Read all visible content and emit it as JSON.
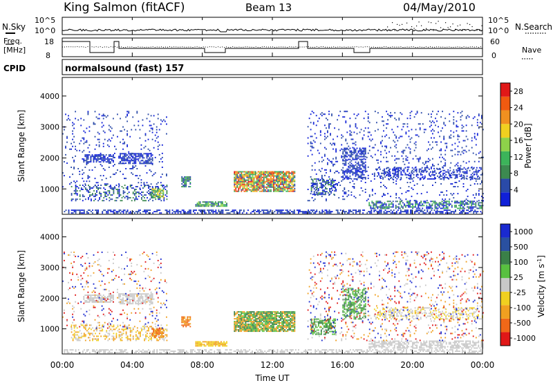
{
  "header": {
    "station": "King Salmon (fitACF)",
    "beam": "Beam 13",
    "date": "04/May/2010"
  },
  "top_panels": {
    "nsky_label": "N.Sky",
    "nsky_ticks": [
      "10^5",
      "10^0"
    ],
    "nsearch_label": "N.Search",
    "nsearch_ticks": [
      "10^5",
      "10^0"
    ],
    "freq_label_1": "Freq.",
    "freq_label_2": "[MHz]",
    "freq_ticks": [
      "18",
      "8"
    ],
    "nave_label": "Nave",
    "nave_ticks": [
      "60",
      "0"
    ],
    "cpid_label": "CPID",
    "cpid_value": "normalsound (fast) 157"
  },
  "x_axis": {
    "ticks": [
      "00:00",
      "04:00",
      "08:00",
      "12:00",
      "16:00",
      "20:00",
      "00:00"
    ],
    "label": "Time UT"
  },
  "colors": {
    "power": [
      "#1020d8",
      "#2a4aa8",
      "#3c8a50",
      "#3cb45a",
      "#8ed24a",
      "#f0d020",
      "#f09020",
      "#f05a10",
      "#e01818"
    ],
    "velocity": [
      "#1a2ad0",
      "#2a50a0",
      "#3a8048",
      "#58c040",
      "#c8c8c8",
      "#f0d020",
      "#f0a020",
      "#f06818",
      "#e01818"
    ]
  },
  "chart_data": [
    {
      "type": "heatmap",
      "panel": "power",
      "ylabel": "Slant Range [km]",
      "y_ticks": [
        1000,
        2000,
        3000,
        4000
      ],
      "ylim": [
        180,
        4600
      ],
      "xlim": [
        0,
        24
      ],
      "colorbar_label": "Power [dB]",
      "colorbar_ticks": [
        4,
        8,
        12,
        16,
        20,
        24,
        28
      ],
      "colorbar_range": [
        0,
        30
      ],
      "regions": [
        {
          "t": [
            0.1,
            24.0
          ],
          "r": [
            200,
            330
          ],
          "density": 0.55,
          "levels": [
            0,
            1
          ]
        },
        {
          "t": [
            1.2,
            2.9
          ],
          "r": [
            1850,
            2100
          ],
          "density": 0.7,
          "levels": [
            0,
            1
          ]
        },
        {
          "t": [
            3.2,
            5.2
          ],
          "r": [
            1800,
            2150
          ],
          "density": 0.7,
          "levels": [
            0,
            1
          ]
        },
        {
          "t": [
            0.5,
            6.0
          ],
          "r": [
            600,
            1100
          ],
          "density": 0.35,
          "levels": [
            0,
            1,
            2
          ]
        },
        {
          "t": [
            5.1,
            5.8
          ],
          "r": [
            700,
            1000
          ],
          "density": 0.8,
          "levels": [
            2,
            3,
            4,
            5
          ]
        },
        {
          "t": [
            6.8,
            7.3
          ],
          "r": [
            1050,
            1400
          ],
          "density": 0.7,
          "levels": [
            1,
            2,
            3
          ]
        },
        {
          "t": [
            7.6,
            9.4
          ],
          "r": [
            420,
            580
          ],
          "density": 0.85,
          "levels": [
            1,
            2,
            3,
            4
          ]
        },
        {
          "t": [
            9.8,
            13.3
          ],
          "r": [
            900,
            1550
          ],
          "density": 0.85,
          "levels": [
            1,
            2,
            3,
            4,
            5,
            6,
            7,
            8
          ]
        },
        {
          "t": [
            14.2,
            15.6
          ],
          "r": [
            800,
            1300
          ],
          "density": 0.55,
          "levels": [
            0,
            1,
            2
          ]
        },
        {
          "t": [
            16.0,
            17.3
          ],
          "r": [
            1300,
            2300
          ],
          "density": 0.5,
          "levels": [
            0,
            1
          ]
        },
        {
          "t": [
            17.5,
            24.0
          ],
          "r": [
            350,
            600
          ],
          "density": 0.6,
          "levels": [
            0,
            1,
            2,
            3
          ]
        },
        {
          "t": [
            17.8,
            24.0
          ],
          "r": [
            1300,
            1700
          ],
          "density": 0.35,
          "levels": [
            0,
            1
          ]
        },
        {
          "t": [
            0.0,
            6.0
          ],
          "r": [
            1000,
            3500
          ],
          "density": 0.08,
          "levels": [
            0,
            1
          ]
        },
        {
          "t": [
            14.0,
            24.0
          ],
          "r": [
            600,
            3500
          ],
          "density": 0.1,
          "levels": [
            0,
            1
          ]
        }
      ]
    },
    {
      "type": "heatmap",
      "panel": "velocity",
      "ylabel": "Slant Range [km]",
      "y_ticks": [
        1000,
        2000,
        3000,
        4000
      ],
      "ylim": [
        180,
        4600
      ],
      "xlim": [
        0,
        24
      ],
      "colorbar_label": "Velocity [m s^-1]",
      "colorbar_ticks": [
        1000,
        500,
        100,
        25,
        -25,
        -100,
        -500,
        -1000
      ],
      "regions": [
        {
          "t": [
            0.1,
            24.0
          ],
          "r": [
            200,
            330
          ],
          "density": 0.5,
          "levels": [
            4
          ]
        },
        {
          "t": [
            1.2,
            2.9
          ],
          "r": [
            1850,
            2100
          ],
          "density": 0.7,
          "levels": [
            4
          ]
        },
        {
          "t": [
            3.2,
            5.2
          ],
          "r": [
            1800,
            2150
          ],
          "density": 0.7,
          "levels": [
            4
          ]
        },
        {
          "t": [
            0.5,
            6.0
          ],
          "r": [
            600,
            1100
          ],
          "density": 0.35,
          "levels": [
            4,
            5,
            6
          ]
        },
        {
          "t": [
            5.1,
            5.8
          ],
          "r": [
            700,
            1000
          ],
          "density": 0.8,
          "levels": [
            6,
            7
          ]
        },
        {
          "t": [
            6.8,
            7.3
          ],
          "r": [
            1050,
            1400
          ],
          "density": 0.7,
          "levels": [
            6,
            7
          ]
        },
        {
          "t": [
            7.6,
            9.4
          ],
          "r": [
            420,
            580
          ],
          "density": 0.85,
          "levels": [
            5,
            6
          ]
        },
        {
          "t": [
            9.8,
            13.3
          ],
          "r": [
            900,
            1550
          ],
          "density": 0.85,
          "levels": [
            2,
            3,
            6
          ]
        },
        {
          "t": [
            14.2,
            15.6
          ],
          "r": [
            800,
            1300
          ],
          "density": 0.55,
          "levels": [
            2,
            3
          ]
        },
        {
          "t": [
            16.0,
            17.3
          ],
          "r": [
            1300,
            2300
          ],
          "density": 0.5,
          "levels": [
            2,
            3
          ]
        },
        {
          "t": [
            17.5,
            24.0
          ],
          "r": [
            350,
            600
          ],
          "density": 0.6,
          "levels": [
            4
          ]
        },
        {
          "t": [
            17.8,
            24.0
          ],
          "r": [
            1300,
            1700
          ],
          "density": 0.35,
          "levels": [
            4,
            5
          ]
        },
        {
          "t": [
            0.0,
            6.0
          ],
          "r": [
            1000,
            3500
          ],
          "density": 0.08,
          "levels": [
            0,
            4,
            6,
            8
          ]
        },
        {
          "t": [
            14.0,
            24.0
          ],
          "r": [
            600,
            3500
          ],
          "density": 0.1,
          "levels": [
            0,
            4,
            6,
            8
          ]
        }
      ]
    }
  ]
}
